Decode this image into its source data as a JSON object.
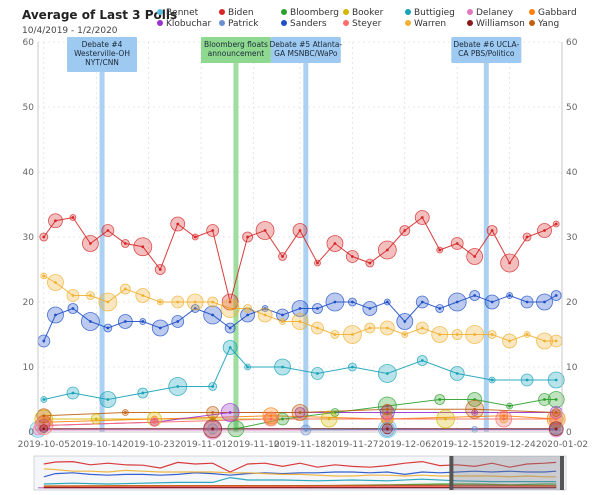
{
  "chart_data": {
    "type": "scatter",
    "title": "Average of Last 3 Polls",
    "subtitle": "10/4/2019 - 1/2/2020",
    "x_range": [
      "2019-10-04",
      "2020-01-02"
    ],
    "ylim": [
      0,
      60
    ],
    "y_ticks": [
      0,
      10,
      20,
      30,
      40,
      50,
      60
    ],
    "x_ticks": [
      "2019-10-05",
      "2019-10-14",
      "2019-10-23",
      "2019-11-01",
      "2019-11-10",
      "2019-11-18",
      "2019-11-27",
      "2019-12-06",
      "2019-12-15",
      "2019-12-24",
      "2020-01-02"
    ],
    "grid": true,
    "legend_position": "top",
    "series": [
      {
        "name": "Bennet",
        "color": "#5bc0de",
        "values": [
          [
            0,
            0.4
          ],
          [
            30,
            0.5
          ],
          [
            60,
            0.5
          ],
          [
            89,
            0.4
          ]
        ]
      },
      {
        "name": "Biden",
        "color": "#d62728",
        "values": [
          [
            1,
            30
          ],
          [
            3,
            32.5
          ],
          [
            6,
            33
          ],
          [
            9,
            29
          ],
          [
            12,
            31
          ],
          [
            15,
            29
          ],
          [
            18,
            28.5
          ],
          [
            21,
            25
          ],
          [
            24,
            32
          ],
          [
            27,
            30
          ],
          [
            30,
            31
          ],
          [
            33,
            20
          ],
          [
            36,
            30
          ],
          [
            39,
            31
          ],
          [
            42,
            27
          ],
          [
            45,
            31
          ],
          [
            48,
            26
          ],
          [
            51,
            29
          ],
          [
            54,
            27
          ],
          [
            57,
            26
          ],
          [
            60,
            28
          ],
          [
            63,
            31
          ],
          [
            66,
            33
          ],
          [
            69,
            28
          ],
          [
            72,
            29
          ],
          [
            75,
            27
          ],
          [
            78,
            31
          ],
          [
            81,
            26
          ],
          [
            84,
            30
          ],
          [
            87,
            31
          ],
          [
            89,
            32
          ]
        ]
      },
      {
        "name": "Bloomberg",
        "color": "#2ca02c",
        "values": [
          [
            34,
            0.5
          ],
          [
            42,
            2
          ],
          [
            51,
            3
          ],
          [
            60,
            4
          ],
          [
            69,
            5
          ],
          [
            75,
            5
          ],
          [
            81,
            4
          ],
          [
            87,
            5
          ],
          [
            89,
            5
          ]
        ]
      },
      {
        "name": "Booker",
        "color": "#d4b800",
        "values": [
          [
            1,
            2
          ],
          [
            10,
            2
          ],
          [
            20,
            2
          ],
          [
            30,
            2
          ],
          [
            40,
            2
          ],
          [
            50,
            2
          ],
          [
            60,
            2
          ],
          [
            70,
            2
          ],
          [
            80,
            2
          ],
          [
            89,
            2
          ]
        ]
      },
      {
        "name": "Buttigieg",
        "color": "#17a2b8",
        "values": [
          [
            1,
            5
          ],
          [
            6,
            6
          ],
          [
            12,
            5
          ],
          [
            18,
            6
          ],
          [
            24,
            7
          ],
          [
            30,
            7
          ],
          [
            33,
            13
          ],
          [
            36,
            10
          ],
          [
            42,
            10
          ],
          [
            48,
            9
          ],
          [
            54,
            10
          ],
          [
            60,
            9
          ],
          [
            66,
            11
          ],
          [
            72,
            9
          ],
          [
            78,
            8
          ],
          [
            84,
            8
          ],
          [
            89,
            8
          ]
        ]
      },
      {
        "name": "Delaney",
        "color": "#e377c2",
        "values": [
          [
            0,
            0.3
          ],
          [
            30,
            0.3
          ],
          [
            60,
            0.3
          ],
          [
            89,
            0.3
          ]
        ]
      },
      {
        "name": "Gabbard",
        "color": "#ff7f0e",
        "values": [
          [
            1,
            1.5
          ],
          [
            20,
            2
          ],
          [
            40,
            2.5
          ],
          [
            60,
            2
          ],
          [
            80,
            2.5
          ],
          [
            89,
            2
          ]
        ]
      },
      {
        "name": "Klobuchar",
        "color": "#9932cc",
        "values": [
          [
            1,
            1
          ],
          [
            20,
            1.5
          ],
          [
            33,
            3
          ],
          [
            45,
            3
          ],
          [
            60,
            3
          ],
          [
            75,
            3
          ],
          [
            89,
            3
          ]
        ]
      },
      {
        "name": "Patrick",
        "color": "#6a8fd0",
        "values": [
          [
            46,
            0.3
          ],
          [
            60,
            0.4
          ],
          [
            75,
            0.4
          ],
          [
            89,
            0.4
          ]
        ]
      },
      {
        "name": "Sanders",
        "color": "#1f50c8",
        "values": [
          [
            1,
            14
          ],
          [
            3,
            18
          ],
          [
            6,
            19
          ],
          [
            9,
            17
          ],
          [
            12,
            16
          ],
          [
            15,
            17
          ],
          [
            18,
            17
          ],
          [
            21,
            16
          ],
          [
            24,
            17
          ],
          [
            27,
            19
          ],
          [
            30,
            18
          ],
          [
            33,
            16
          ],
          [
            36,
            18
          ],
          [
            39,
            19
          ],
          [
            42,
            18
          ],
          [
            45,
            19
          ],
          [
            48,
            19
          ],
          [
            51,
            20
          ],
          [
            54,
            20
          ],
          [
            57,
            19
          ],
          [
            60,
            20
          ],
          [
            63,
            17
          ],
          [
            66,
            20
          ],
          [
            69,
            19
          ],
          [
            72,
            20
          ],
          [
            75,
            21
          ],
          [
            78,
            20
          ],
          [
            81,
            21
          ],
          [
            84,
            20
          ],
          [
            87,
            20
          ],
          [
            89,
            21
          ]
        ]
      },
      {
        "name": "Steyer",
        "color": "#ff6b6b",
        "values": [
          [
            1,
            1
          ],
          [
            20,
            1.5
          ],
          [
            40,
            2
          ],
          [
            60,
            2
          ],
          [
            80,
            2
          ],
          [
            89,
            2
          ]
        ]
      },
      {
        "name": "Warren",
        "color": "#f0b030",
        "values": [
          [
            1,
            24
          ],
          [
            3,
            23
          ],
          [
            6,
            21
          ],
          [
            9,
            21
          ],
          [
            12,
            20
          ],
          [
            15,
            22
          ],
          [
            18,
            21
          ],
          [
            21,
            20
          ],
          [
            24,
            20
          ],
          [
            27,
            20
          ],
          [
            30,
            20
          ],
          [
            33,
            19
          ],
          [
            36,
            19
          ],
          [
            39,
            18
          ],
          [
            42,
            17
          ],
          [
            45,
            17
          ],
          [
            48,
            16
          ],
          [
            51,
            15
          ],
          [
            54,
            15
          ],
          [
            57,
            16
          ],
          [
            60,
            16
          ],
          [
            63,
            15
          ],
          [
            66,
            16
          ],
          [
            69,
            15
          ],
          [
            72,
            15
          ],
          [
            75,
            15
          ],
          [
            78,
            15
          ],
          [
            81,
            14
          ],
          [
            84,
            15
          ],
          [
            87,
            14
          ],
          [
            89,
            14
          ]
        ]
      },
      {
        "name": "Williamson",
        "color": "#8b1a1a",
        "values": [
          [
            1,
            0.5
          ],
          [
            30,
            0.5
          ],
          [
            60,
            0.5
          ],
          [
            89,
            0.5
          ]
        ]
      },
      {
        "name": "Yang",
        "color": "#c06010",
        "values": [
          [
            1,
            2.5
          ],
          [
            15,
            3
          ],
          [
            30,
            3
          ],
          [
            45,
            3
          ],
          [
            60,
            3.5
          ],
          [
            75,
            3.5
          ],
          [
            89,
            3
          ]
        ]
      }
    ],
    "annotations": [
      {
        "label": "Debate #4\nWesterville-OH\nNYT/CNN",
        "x": 11,
        "color": "#9ec9f0"
      },
      {
        "label": "Bloomberg floats\nannouncement",
        "x": 34,
        "color": "#8fd88f"
      },
      {
        "label": "Debate #5 Atlanta-\nGA MSNBC/WaPo",
        "x": 46,
        "color": "#9ec9f0"
      },
      {
        "label": "Debate #6 UCLA-\nCA PBS/Politico",
        "x": 77,
        "color": "#9ec9f0"
      }
    ]
  }
}
